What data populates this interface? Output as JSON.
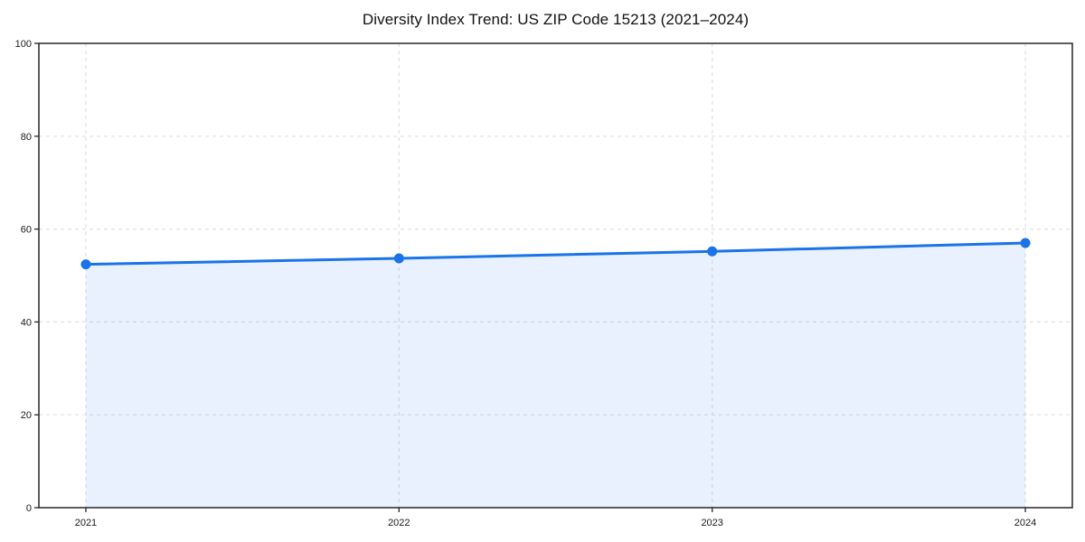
{
  "chart_data": {
    "type": "line",
    "title": "Diversity Index Trend: US ZIP Code 15213 (2021–2024)",
    "x": [
      2021,
      2022,
      2023,
      2024
    ],
    "xticks": [
      "2021",
      "2022",
      "2023",
      "2024"
    ],
    "series": [
      {
        "name": "Diversity Index",
        "values": [
          52.4,
          53.7,
          55.2,
          57.0
        ]
      }
    ],
    "xlabel": "",
    "ylabel": "",
    "ylim": [
      0,
      100
    ],
    "yticks": [
      0,
      20,
      40,
      60,
      80,
      100
    ],
    "grid": "both-dashed",
    "legend": "none",
    "area_fill": true,
    "colors": {
      "line": "#1a73e8",
      "marker": "#1a73e8",
      "fill": "rgba(26,115,232,0.10)",
      "grid": "#e0e0e0",
      "axis": "#262626",
      "tick_text": "#1a1a1a",
      "background": "#ffffff"
    }
  }
}
